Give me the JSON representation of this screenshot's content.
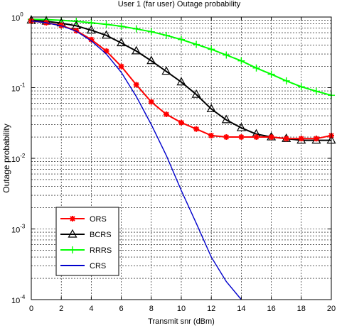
{
  "chart_data": {
    "type": "line",
    "title": "User 1 (far user) Outage probability",
    "xlabel": "Transmit snr (dBm)",
    "ylabel": "Outage probability",
    "xlim": [
      0,
      20
    ],
    "ylim": [
      0.0001,
      1
    ],
    "yscale": "log",
    "grid": true,
    "legend_position": "bottom-left",
    "x_ticks": [
      "0",
      "2",
      "4",
      "6",
      "8",
      "10",
      "12",
      "14",
      "16",
      "18",
      "20"
    ],
    "y_ticks": [
      {
        "value": 1,
        "base": "10",
        "exp": "0"
      },
      {
        "value": 0.1,
        "base": "10",
        "exp": "-1"
      },
      {
        "value": 0.01,
        "base": "10",
        "exp": "-2"
      },
      {
        "value": 0.001,
        "base": "10",
        "exp": "-3"
      },
      {
        "value": 0.0001,
        "base": "10",
        "exp": "-4"
      }
    ],
    "series": [
      {
        "name": "ORS",
        "color": "#ff0000",
        "marker": "star",
        "x": [
          0,
          1,
          2,
          3,
          4,
          5,
          6,
          7,
          8,
          9,
          10,
          11,
          12,
          13,
          14,
          15,
          16,
          17,
          18,
          19,
          20
        ],
        "y": [
          0.88,
          0.83,
          0.76,
          0.64,
          0.48,
          0.33,
          0.2,
          0.11,
          0.063,
          0.042,
          0.032,
          0.026,
          0.021,
          0.02,
          0.02,
          0.02,
          0.02,
          0.019,
          0.019,
          0.019,
          0.021
        ]
      },
      {
        "name": "BCRS",
        "color": "#000000",
        "marker": "triangle",
        "x": [
          0,
          1,
          2,
          3,
          4,
          5,
          6,
          7,
          8,
          9,
          10,
          11,
          12,
          13,
          14,
          15,
          16,
          17,
          18,
          19,
          20
        ],
        "y": [
          0.9,
          0.87,
          0.82,
          0.75,
          0.65,
          0.55,
          0.43,
          0.33,
          0.24,
          0.17,
          0.12,
          0.08,
          0.05,
          0.035,
          0.027,
          0.022,
          0.02,
          0.019,
          0.018,
          0.018,
          0.018
        ]
      },
      {
        "name": "RRRS",
        "color": "#00ff00",
        "marker": "plus",
        "x": [
          0,
          1,
          2,
          3,
          4,
          5,
          6,
          7,
          8,
          9,
          10,
          11,
          12,
          13,
          14,
          15,
          16,
          17,
          18,
          19,
          20
        ],
        "y": [
          0.93,
          0.92,
          0.9,
          0.87,
          0.83,
          0.79,
          0.74,
          0.68,
          0.62,
          0.55,
          0.48,
          0.41,
          0.35,
          0.29,
          0.24,
          0.19,
          0.155,
          0.125,
          0.103,
          0.089,
          0.078
        ]
      },
      {
        "name": "CRS",
        "color": "#0000cc",
        "marker": "none",
        "x": [
          0,
          1,
          2,
          3,
          4,
          5,
          6,
          7,
          8,
          9,
          10,
          11,
          12,
          13,
          14
        ],
        "y": [
          0.88,
          0.83,
          0.75,
          0.63,
          0.46,
          0.3,
          0.165,
          0.075,
          0.03,
          0.011,
          0.0035,
          0.0012,
          0.0004,
          0.00018,
          0.0001
        ]
      }
    ]
  }
}
